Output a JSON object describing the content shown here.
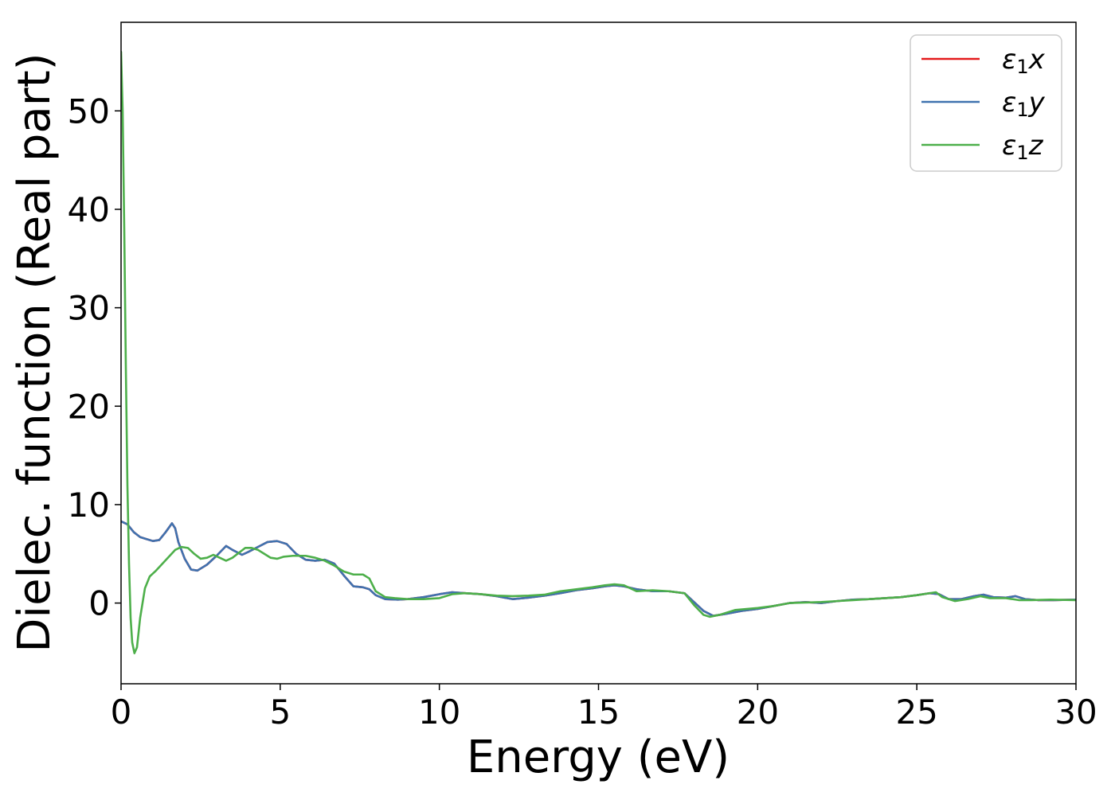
{
  "chart_data": {
    "type": "line",
    "xlabel": "Energy (eV)",
    "ylabel": "Dielec. function (Real part)",
    "xlim": [
      0,
      30
    ],
    "ylim": [
      -8.2,
      59
    ],
    "xticks": [
      0,
      5,
      10,
      15,
      20,
      25,
      30
    ],
    "xtick_labels": [
      "0",
      "5",
      "10",
      "15",
      "20",
      "25",
      "30"
    ],
    "yticks": [
      0,
      10,
      20,
      30,
      40,
      50
    ],
    "ytick_labels": [
      "0",
      "10",
      "20",
      "30",
      "40",
      "50"
    ],
    "grid": false,
    "legend_position": "top-right",
    "series": [
      {
        "name": "ε1x",
        "legend_symbol": "ε",
        "legend_sub": "1",
        "legend_var": "x",
        "color": "#e41a1c",
        "points": [
          [
            0,
            8.3
          ],
          [
            0.2,
            8.0
          ],
          [
            0.4,
            7.2
          ],
          [
            0.6,
            6.7
          ],
          [
            0.8,
            6.5
          ],
          [
            1.0,
            6.3
          ],
          [
            1.2,
            6.4
          ],
          [
            1.4,
            7.2
          ],
          [
            1.6,
            8.1
          ],
          [
            1.7,
            7.6
          ],
          [
            1.8,
            6.2
          ],
          [
            2.0,
            4.5
          ],
          [
            2.2,
            3.4
          ],
          [
            2.4,
            3.3
          ],
          [
            2.7,
            3.9
          ],
          [
            3.0,
            4.8
          ],
          [
            3.3,
            5.8
          ],
          [
            3.5,
            5.4
          ],
          [
            3.8,
            4.9
          ],
          [
            4.0,
            5.2
          ],
          [
            4.3,
            5.7
          ],
          [
            4.6,
            6.2
          ],
          [
            4.9,
            6.3
          ],
          [
            5.2,
            6.0
          ],
          [
            5.5,
            5.0
          ],
          [
            5.8,
            4.4
          ],
          [
            6.1,
            4.3
          ],
          [
            6.4,
            4.4
          ],
          [
            6.7,
            4.0
          ],
          [
            7.0,
            2.8
          ],
          [
            7.3,
            1.7
          ],
          [
            7.6,
            1.6
          ],
          [
            7.8,
            1.4
          ],
          [
            8.0,
            0.8
          ],
          [
            8.3,
            0.4
          ],
          [
            8.7,
            0.35
          ],
          [
            9.0,
            0.4
          ],
          [
            9.5,
            0.6
          ],
          [
            10.0,
            0.9
          ],
          [
            10.4,
            1.1
          ],
          [
            10.8,
            1.0
          ],
          [
            11.3,
            0.9
          ],
          [
            11.8,
            0.7
          ],
          [
            12.3,
            0.4
          ],
          [
            12.8,
            0.55
          ],
          [
            13.3,
            0.75
          ],
          [
            13.8,
            1.0
          ],
          [
            14.3,
            1.3
          ],
          [
            14.8,
            1.5
          ],
          [
            15.2,
            1.7
          ],
          [
            15.5,
            1.8
          ],
          [
            15.8,
            1.7
          ],
          [
            16.2,
            1.4
          ],
          [
            16.7,
            1.2
          ],
          [
            17.2,
            1.2
          ],
          [
            17.7,
            1.0
          ],
          [
            18.0,
            0.1
          ],
          [
            18.3,
            -0.8
          ],
          [
            18.6,
            -1.3
          ],
          [
            19.0,
            -1.1
          ],
          [
            19.5,
            -0.8
          ],
          [
            20.0,
            -0.6
          ],
          [
            20.5,
            -0.3
          ],
          [
            21.0,
            0
          ],
          [
            21.5,
            0.1
          ],
          [
            22.0,
            0
          ],
          [
            22.5,
            0.2
          ],
          [
            23.0,
            0.35
          ],
          [
            23.5,
            0.4
          ],
          [
            24.0,
            0.5
          ],
          [
            24.5,
            0.6
          ],
          [
            25.0,
            0.8
          ],
          [
            25.4,
            1.0
          ],
          [
            25.7,
            0.9
          ],
          [
            26.0,
            0.4
          ],
          [
            26.4,
            0.4
          ],
          [
            26.8,
            0.7
          ],
          [
            27.1,
            0.85
          ],
          [
            27.4,
            0.6
          ],
          [
            27.8,
            0.55
          ],
          [
            28.1,
            0.7
          ],
          [
            28.4,
            0.4
          ],
          [
            28.8,
            0.3
          ],
          [
            29.3,
            0.3
          ],
          [
            30.0,
            0.35
          ]
        ]
      },
      {
        "name": "ε1y",
        "legend_symbol": "ε",
        "legend_sub": "1",
        "legend_var": "y",
        "color": "#3f72af",
        "points": [
          [
            0,
            8.3
          ],
          [
            0.2,
            8.0
          ],
          [
            0.4,
            7.2
          ],
          [
            0.6,
            6.7
          ],
          [
            0.8,
            6.5
          ],
          [
            1.0,
            6.3
          ],
          [
            1.2,
            6.4
          ],
          [
            1.4,
            7.2
          ],
          [
            1.6,
            8.1
          ],
          [
            1.7,
            7.6
          ],
          [
            1.8,
            6.2
          ],
          [
            2.0,
            4.5
          ],
          [
            2.2,
            3.4
          ],
          [
            2.4,
            3.3
          ],
          [
            2.7,
            3.9
          ],
          [
            3.0,
            4.8
          ],
          [
            3.3,
            5.8
          ],
          [
            3.5,
            5.4
          ],
          [
            3.8,
            4.9
          ],
          [
            4.0,
            5.2
          ],
          [
            4.3,
            5.7
          ],
          [
            4.6,
            6.2
          ],
          [
            4.9,
            6.3
          ],
          [
            5.2,
            6.0
          ],
          [
            5.5,
            5.0
          ],
          [
            5.8,
            4.4
          ],
          [
            6.1,
            4.3
          ],
          [
            6.4,
            4.4
          ],
          [
            6.7,
            4.0
          ],
          [
            7.0,
            2.8
          ],
          [
            7.3,
            1.7
          ],
          [
            7.6,
            1.6
          ],
          [
            7.8,
            1.4
          ],
          [
            8.0,
            0.8
          ],
          [
            8.3,
            0.4
          ],
          [
            8.7,
            0.35
          ],
          [
            9.0,
            0.4
          ],
          [
            9.5,
            0.6
          ],
          [
            10.0,
            0.9
          ],
          [
            10.4,
            1.1
          ],
          [
            10.8,
            1.0
          ],
          [
            11.3,
            0.9
          ],
          [
            11.8,
            0.7
          ],
          [
            12.3,
            0.4
          ],
          [
            12.8,
            0.55
          ],
          [
            13.3,
            0.75
          ],
          [
            13.8,
            1.0
          ],
          [
            14.3,
            1.3
          ],
          [
            14.8,
            1.5
          ],
          [
            15.2,
            1.7
          ],
          [
            15.5,
            1.8
          ],
          [
            15.8,
            1.7
          ],
          [
            16.2,
            1.4
          ],
          [
            16.7,
            1.2
          ],
          [
            17.2,
            1.2
          ],
          [
            17.7,
            1.0
          ],
          [
            18.0,
            0.1
          ],
          [
            18.3,
            -0.8
          ],
          [
            18.6,
            -1.3
          ],
          [
            19.0,
            -1.1
          ],
          [
            19.5,
            -0.8
          ],
          [
            20.0,
            -0.6
          ],
          [
            20.5,
            -0.3
          ],
          [
            21.0,
            0
          ],
          [
            21.5,
            0.1
          ],
          [
            22.0,
            0
          ],
          [
            22.5,
            0.2
          ],
          [
            23.0,
            0.35
          ],
          [
            23.5,
            0.4
          ],
          [
            24.0,
            0.5
          ],
          [
            24.5,
            0.6
          ],
          [
            25.0,
            0.8
          ],
          [
            25.4,
            1.0
          ],
          [
            25.7,
            0.9
          ],
          [
            26.0,
            0.4
          ],
          [
            26.4,
            0.4
          ],
          [
            26.8,
            0.7
          ],
          [
            27.1,
            0.85
          ],
          [
            27.4,
            0.6
          ],
          [
            27.8,
            0.55
          ],
          [
            28.1,
            0.7
          ],
          [
            28.4,
            0.4
          ],
          [
            28.8,
            0.3
          ],
          [
            29.3,
            0.3
          ],
          [
            30.0,
            0.35
          ]
        ]
      },
      {
        "name": "ε1z",
        "legend_symbol": "ε",
        "legend_sub": "1",
        "legend_var": "z",
        "color": "#4daf4a",
        "points": [
          [
            0,
            56
          ],
          [
            0.05,
            50
          ],
          [
            0.1,
            38
          ],
          [
            0.15,
            24
          ],
          [
            0.2,
            12
          ],
          [
            0.25,
            4
          ],
          [
            0.3,
            -1.5
          ],
          [
            0.35,
            -4
          ],
          [
            0.42,
            -5.1
          ],
          [
            0.5,
            -4.5
          ],
          [
            0.6,
            -1.5
          ],
          [
            0.75,
            1.5
          ],
          [
            0.9,
            2.7
          ],
          [
            1.1,
            3.3
          ],
          [
            1.3,
            4.0
          ],
          [
            1.5,
            4.7
          ],
          [
            1.7,
            5.4
          ],
          [
            1.9,
            5.7
          ],
          [
            2.1,
            5.6
          ],
          [
            2.3,
            5.0
          ],
          [
            2.5,
            4.5
          ],
          [
            2.7,
            4.6
          ],
          [
            2.9,
            4.9
          ],
          [
            3.1,
            4.6
          ],
          [
            3.3,
            4.3
          ],
          [
            3.5,
            4.6
          ],
          [
            3.7,
            5.1
          ],
          [
            3.9,
            5.6
          ],
          [
            4.1,
            5.6
          ],
          [
            4.3,
            5.4
          ],
          [
            4.5,
            5.0
          ],
          [
            4.7,
            4.6
          ],
          [
            4.9,
            4.5
          ],
          [
            5.1,
            4.7
          ],
          [
            5.4,
            4.8
          ],
          [
            5.8,
            4.8
          ],
          [
            6.1,
            4.6
          ],
          [
            6.4,
            4.3
          ],
          [
            6.7,
            3.8
          ],
          [
            7.0,
            3.2
          ],
          [
            7.3,
            2.9
          ],
          [
            7.6,
            2.9
          ],
          [
            7.8,
            2.5
          ],
          [
            8.0,
            1.2
          ],
          [
            8.3,
            0.6
          ],
          [
            8.6,
            0.5
          ],
          [
            9.0,
            0.4
          ],
          [
            9.5,
            0.4
          ],
          [
            10.0,
            0.5
          ],
          [
            10.4,
            0.9
          ],
          [
            10.8,
            1.0
          ],
          [
            11.3,
            0.9
          ],
          [
            11.8,
            0.75
          ],
          [
            12.3,
            0.7
          ],
          [
            12.8,
            0.75
          ],
          [
            13.3,
            0.85
          ],
          [
            13.8,
            1.2
          ],
          [
            14.3,
            1.4
          ],
          [
            14.8,
            1.6
          ],
          [
            15.2,
            1.8
          ],
          [
            15.5,
            1.9
          ],
          [
            15.8,
            1.8
          ],
          [
            16.2,
            1.2
          ],
          [
            16.7,
            1.3
          ],
          [
            17.2,
            1.2
          ],
          [
            17.7,
            1.0
          ],
          [
            18.0,
            -0.2
          ],
          [
            18.3,
            -1.2
          ],
          [
            18.5,
            -1.4
          ],
          [
            18.8,
            -1.2
          ],
          [
            19.3,
            -0.7
          ],
          [
            20.0,
            -0.5
          ],
          [
            20.5,
            -0.3
          ],
          [
            21.0,
            0
          ],
          [
            21.5,
            0.05
          ],
          [
            22.0,
            0.1
          ],
          [
            22.5,
            0.2
          ],
          [
            23.0,
            0.3
          ],
          [
            23.5,
            0.4
          ],
          [
            24.0,
            0.5
          ],
          [
            24.5,
            0.6
          ],
          [
            25.0,
            0.8
          ],
          [
            25.4,
            1.0
          ],
          [
            25.6,
            1.1
          ],
          [
            25.8,
            0.6
          ],
          [
            26.2,
            0.2
          ],
          [
            26.6,
            0.4
          ],
          [
            27.0,
            0.7
          ],
          [
            27.3,
            0.5
          ],
          [
            27.8,
            0.5
          ],
          [
            28.2,
            0.3
          ],
          [
            28.6,
            0.3
          ],
          [
            29.2,
            0.35
          ],
          [
            30.0,
            0.3
          ]
        ]
      }
    ]
  }
}
